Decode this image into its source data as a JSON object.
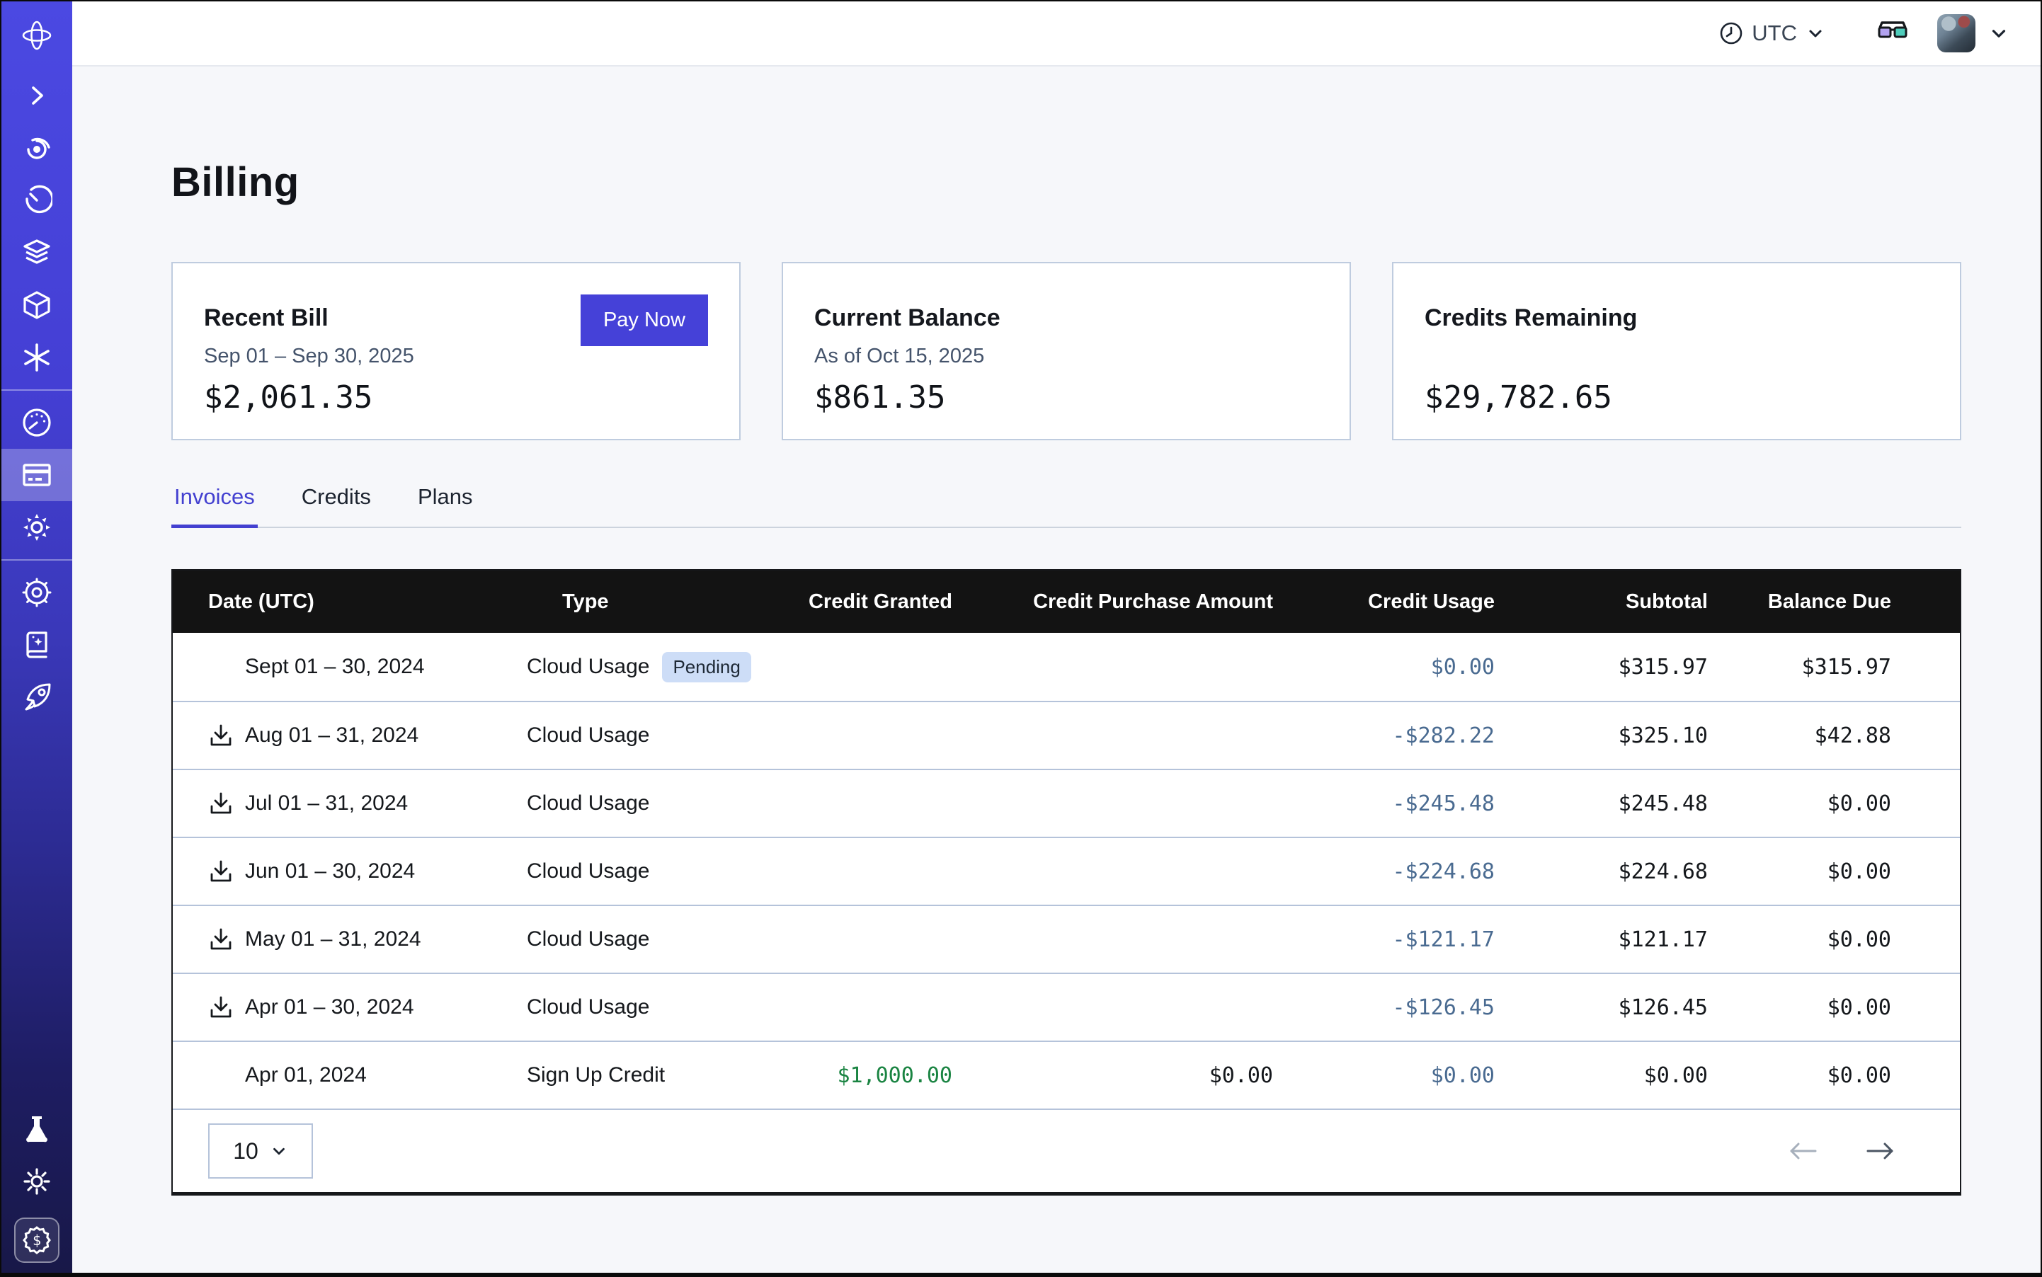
{
  "topbar": {
    "timezone_label": "UTC",
    "icons": [
      "clock-icon",
      "chevron-down-icon",
      "3d-glasses-icon",
      "user-avatar",
      "chevron-down-icon"
    ]
  },
  "sidebar": {
    "items": [
      "logo-propeller-icon",
      "chevron-right-icon",
      "spiral-icon",
      "timer-icon",
      "layers-icon",
      "cube-icon",
      "asterisk-icon",
      "gauge-icon",
      "billing-card-icon",
      "gear-icon",
      "helm-icon",
      "book-sparkle-icon",
      "rocket-icon",
      "flask-icon",
      "sun-icon",
      "dollar-badge-icon"
    ],
    "active_item": "billing-card-icon"
  },
  "page": {
    "title": "Billing"
  },
  "cards": {
    "recent_bill": {
      "title": "Recent Bill",
      "period": "Sep 01 – Sep 30, 2025",
      "amount": "$2,061.35",
      "button_label": "Pay Now"
    },
    "current_balance": {
      "title": "Current Balance",
      "as_of": "As of Oct 15, 2025",
      "amount": "$861.35"
    },
    "credits_remaining": {
      "title": "Credits Remaining",
      "amount": "$29,782.65"
    }
  },
  "tabs": [
    {
      "label": "Invoices",
      "active": true
    },
    {
      "label": "Credits",
      "active": false
    },
    {
      "label": "Plans",
      "active": false
    }
  ],
  "table": {
    "columns": [
      "Date (UTC)",
      "Type",
      "Credit Granted",
      "Credit Purchase Amount",
      "Credit Usage",
      "Subtotal",
      "Balance Due"
    ],
    "rows": [
      {
        "date": "Sept 01 – 30, 2024",
        "download": false,
        "type": "Cloud Usage",
        "badge": "Pending",
        "credit_granted": "",
        "granted_color": "",
        "credit_purchase": "",
        "credit_usage": "$0.00",
        "subtotal": "$315.97",
        "balance_due": "$315.97"
      },
      {
        "date": "Aug 01 – 31, 2024",
        "download": true,
        "type": "Cloud Usage",
        "badge": "",
        "credit_granted": "",
        "granted_color": "",
        "credit_purchase": "",
        "credit_usage": "-$282.22",
        "subtotal": "$325.10",
        "balance_due": "$42.88"
      },
      {
        "date": "Jul 01 – 31, 2024",
        "download": true,
        "type": "Cloud Usage",
        "badge": "",
        "credit_granted": "",
        "granted_color": "",
        "credit_purchase": "",
        "credit_usage": "-$245.48",
        "subtotal": "$245.48",
        "balance_due": "$0.00"
      },
      {
        "date": "Jun 01 – 30, 2024",
        "download": true,
        "type": "Cloud Usage",
        "badge": "",
        "credit_granted": "",
        "granted_color": "",
        "credit_purchase": "",
        "credit_usage": "-$224.68",
        "subtotal": "$224.68",
        "balance_due": "$0.00"
      },
      {
        "date": "May 01 – 31, 2024",
        "download": true,
        "type": "Cloud Usage",
        "badge": "",
        "credit_granted": "",
        "granted_color": "",
        "credit_purchase": "",
        "credit_usage": "-$121.17",
        "subtotal": "$121.17",
        "balance_due": "$0.00"
      },
      {
        "date": "Apr 01 – 30, 2024",
        "download": true,
        "type": "Cloud Usage",
        "badge": "",
        "credit_granted": "",
        "granted_color": "",
        "credit_purchase": "",
        "credit_usage": "-$126.45",
        "subtotal": "$126.45",
        "balance_due": "$0.00"
      },
      {
        "date": "Apr 01, 2024",
        "download": false,
        "type": "Sign Up Credit",
        "badge": "",
        "credit_granted": "$1,000.00",
        "granted_color": "green",
        "credit_purchase": "$0.00",
        "credit_usage": "$0.00",
        "subtotal": "$0.00",
        "balance_due": "$0.00"
      }
    ]
  },
  "pagination": {
    "page_size": "10",
    "icons": [
      "chevron-down-icon",
      "arrow-left-icon",
      "arrow-right-icon"
    ]
  },
  "colors": {
    "accent": "#4541d8",
    "tab_active": "#4340d0",
    "credit_usage_text": "#4a6b91",
    "credit_granted_green": "#1a8442",
    "pending_badge_bg": "#cdddf7",
    "table_header_bg": "#131313",
    "row_border": "#b5c3da",
    "card_border": "#bfccdf",
    "page_bg": "#f6f7fa",
    "sidebar_top": "#4b49e2",
    "sidebar_bottom": "#181848"
  }
}
